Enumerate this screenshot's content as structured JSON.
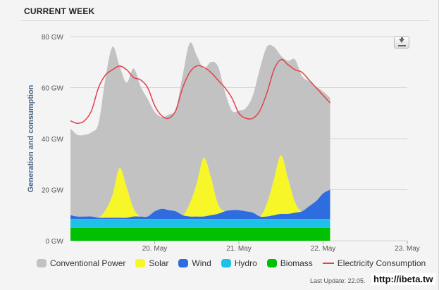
{
  "panel": {
    "title": "CURRENT WEEK",
    "last_update": "Last Update: 22.05.",
    "watermark": "http://ibeta.tw"
  },
  "chart_data": {
    "type": "area",
    "ylabel": "Generation and consumption",
    "ylim": [
      0,
      80
    ],
    "yticks": [
      "0 GW",
      "20 GW",
      "40 GW",
      "60 GW",
      "80 GW"
    ],
    "ytick_values": [
      0,
      20,
      40,
      60,
      80
    ],
    "xlim": [
      0,
      96
    ],
    "xticks": [
      "20. May",
      "21. May",
      "22. May",
      "23. May"
    ],
    "xtick_hours": [
      24,
      48,
      72,
      96
    ],
    "grid": true,
    "legend_position": "bottom",
    "x_hours": [
      0,
      2,
      4,
      6,
      8,
      10,
      12,
      14,
      16,
      18,
      20,
      22,
      24,
      26,
      28,
      30,
      32,
      34,
      36,
      38,
      40,
      42,
      44,
      46,
      48,
      50,
      52,
      54,
      56,
      58,
      60,
      62,
      64,
      66,
      68,
      70,
      72,
      74
    ],
    "series": [
      {
        "name": "Biomass",
        "color": "#00c000",
        "values": [
          5,
          5,
          5,
          5,
          5,
          5,
          5,
          5,
          5,
          5,
          5,
          5,
          5,
          5,
          5,
          5,
          5,
          5,
          5,
          5,
          5,
          5,
          5,
          5,
          5,
          5,
          5,
          5,
          5,
          5,
          5,
          5,
          5,
          5,
          5,
          5,
          5,
          5
        ]
      },
      {
        "name": "Hydro",
        "color": "#1fc0e8",
        "values": [
          3.5,
          3.5,
          3.5,
          3.5,
          3.5,
          3.5,
          3.5,
          3.5,
          3.5,
          3.5,
          3.5,
          3.5,
          3.5,
          3.5,
          3.5,
          3.5,
          3.5,
          3.5,
          3.5,
          3.5,
          3.5,
          3.5,
          3.5,
          3.5,
          3.5,
          3.5,
          3.5,
          3.5,
          3.5,
          3.5,
          3.5,
          3.5,
          3.5,
          3.5,
          3.5,
          3.5,
          3.5,
          3.5
        ]
      },
      {
        "name": "Wind",
        "color": "#2e6de0",
        "values": [
          1.5,
          1,
          1,
          1,
          0.5,
          0.5,
          0.5,
          0.5,
          0.5,
          1,
          1,
          1,
          3,
          4,
          3.5,
          3,
          1.5,
          1,
          1,
          1,
          1.5,
          2,
          3,
          3.5,
          3.5,
          3,
          2.5,
          1,
          1,
          1.5,
          2,
          2,
          2.5,
          3,
          5,
          7,
          10,
          11.5
        ]
      },
      {
        "name": "Solar",
        "color": "#f6f629",
        "values": [
          0,
          0,
          0,
          0,
          0,
          3,
          9,
          19.5,
          12,
          3,
          0,
          0,
          0,
          0,
          0,
          0,
          0,
          5,
          13,
          23,
          15,
          4,
          0,
          0,
          0,
          0,
          0,
          0,
          5,
          14,
          23,
          14,
          4,
          0,
          0,
          0,
          0,
          0
        ]
      },
      {
        "name": "Conventional Power",
        "color": "#c2c2c2",
        "values": [
          34,
          32,
          32,
          33,
          37,
          52,
          58,
          40,
          41,
          55,
          51,
          46,
          39,
          36,
          37.5,
          40,
          55,
          63,
          50,
          35,
          45,
          54,
          47,
          39,
          39,
          40.5,
          46,
          58,
          61.5,
          52,
          39,
          46,
          56,
          53,
          49,
          45,
          40,
          36
        ]
      }
    ],
    "consumption": {
      "name": "Electricity Consumption",
      "color": "#e0424a",
      "values": [
        47,
        46,
        47,
        51,
        60,
        65,
        67,
        68.5,
        67,
        64,
        63,
        60,
        53,
        49,
        48,
        51,
        60,
        66,
        68.5,
        68,
        66,
        63,
        60,
        56,
        50,
        48,
        48,
        51,
        58,
        67,
        71,
        69,
        67,
        66,
        63,
        60,
        57,
        54
      ]
    }
  }
}
